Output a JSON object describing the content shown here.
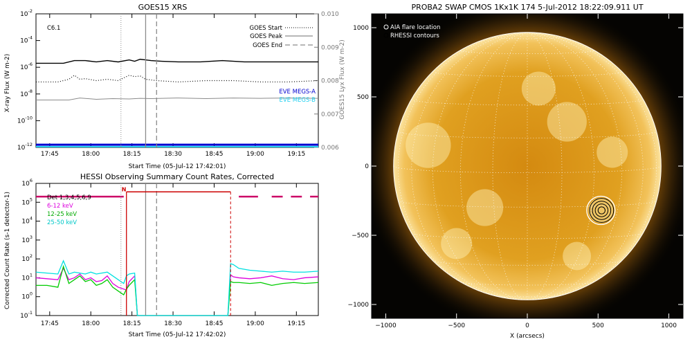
{
  "colors": {
    "xray_long": "#000000",
    "xray_short": "#000000",
    "lyx": "#8a8a8a",
    "megs_a": "#0000d0",
    "megs_b": "#20d0f0",
    "goes_start": "#8a8a8a",
    "goes_peak": "#8a8a8a",
    "goes_end": "#8a8a8a",
    "det": "#cc0066",
    "low": "#dd00dd",
    "mid": "#00cc00",
    "high": "#00e0e0",
    "flag": "#cc0000",
    "sun_bg": "#050402",
    "sun_disk": "#e6a21c",
    "sun_limb": "#f6c868"
  },
  "chart_data": [
    {
      "type": "line",
      "title": "GOES15 XRS",
      "xlabel": "Start Time (05-Jul-12 17:42:01)",
      "ylabel": "X-ray Flux (W m-2)",
      "y2label": "GOES15 Lyx Flux (W m-2)",
      "flare_class": "C6.1",
      "xlim": [
        -2,
        101
      ],
      "ylim_log": [
        -12,
        -2
      ],
      "y2lim": [
        0.006,
        0.01
      ],
      "x_ticks": [
        {
          "v": 3,
          "label": "17:45"
        },
        {
          "v": 18,
          "label": "18:00"
        },
        {
          "v": 33,
          "label": "18:15"
        },
        {
          "v": 48,
          "label": "18:30"
        },
        {
          "v": 63,
          "label": "18:45"
        },
        {
          "v": 78,
          "label": "19:00"
        },
        {
          "v": 93,
          "label": "19:15"
        }
      ],
      "y_ticks": [
        {
          "v": -2,
          "label": "10",
          "exp": "-2"
        },
        {
          "v": -4,
          "label": "10",
          "exp": "-4"
        },
        {
          "v": -6,
          "label": "10",
          "exp": "-6"
        },
        {
          "v": -8,
          "label": "10",
          "exp": "-8"
        },
        {
          "v": -10,
          "label": "10",
          "exp": "-10"
        },
        {
          "v": -12,
          "label": "10",
          "exp": "-12"
        }
      ],
      "y2_ticks": [
        "0.010",
        "0.009",
        "0.008",
        "0.007",
        "0.006"
      ],
      "legend": [
        "GOES Start",
        "GOES Peak",
        "GOES End"
      ],
      "legend2": [
        "EVE MEGS-A",
        "EVE MEGS-B"
      ],
      "events": {
        "start": 29,
        "peak": 38,
        "end": 42
      },
      "series": [
        {
          "name": "xray_long",
          "x": [
            -2,
            8,
            12,
            16,
            20,
            24,
            28,
            32,
            34,
            36,
            38,
            40,
            44,
            50,
            58,
            66,
            74,
            82,
            90,
            101
          ],
          "y": [
            -5.7,
            -5.7,
            -5.5,
            -5.5,
            -5.6,
            -5.5,
            -5.6,
            -5.45,
            -5.55,
            -5.4,
            -5.45,
            -5.5,
            -5.55,
            -5.6,
            -5.6,
            -5.5,
            -5.6,
            -5.6,
            -5.6,
            -5.6
          ]
        },
        {
          "name": "xray_short",
          "x": [
            -2,
            6,
            10,
            12,
            14,
            16,
            20,
            24,
            28,
            32,
            34,
            36,
            38,
            42,
            50,
            60,
            70,
            80,
            90,
            101
          ],
          "y": [
            -7.1,
            -7.1,
            -6.9,
            -6.6,
            -6.9,
            -6.85,
            -7.0,
            -6.9,
            -7.0,
            -6.6,
            -6.7,
            -6.65,
            -6.9,
            -7.0,
            -7.1,
            -7.0,
            -7.0,
            -7.1,
            -7.1,
            -7.0
          ]
        },
        {
          "name": "lyx",
          "x": [
            -2,
            10,
            14,
            20,
            26,
            32,
            36,
            40,
            50,
            60,
            70,
            80,
            90,
            101
          ],
          "y": [
            0.00742,
            0.00742,
            0.00748,
            0.00744,
            0.00746,
            0.00745,
            0.00747,
            0.00746,
            0.00748,
            0.00746,
            0.00748,
            0.00747,
            0.00748,
            0.00747
          ]
        },
        {
          "name": "EVE MEGS-A",
          "x": [
            -2,
            101
          ],
          "y": [
            -11.8,
            -11.8
          ]
        },
        {
          "name": "EVE MEGS-B",
          "x": [
            -2,
            101
          ],
          "y": [
            -11.95,
            -11.95
          ]
        }
      ]
    },
    {
      "type": "line",
      "title": "HESSI Observing Summary Count Rates, Corrected",
      "xlabel": "Start Time (05-Jul-12 17:42:02)",
      "ylabel": "Corrected Count Rate (s-1 detector-1)",
      "xlim": [
        -2,
        101
      ],
      "ylim_log": [
        -1,
        6
      ],
      "x_ticks": [
        {
          "v": 3,
          "label": "17:45"
        },
        {
          "v": 18,
          "label": "18:00"
        },
        {
          "v": 33,
          "label": "18:15"
        },
        {
          "v": 48,
          "label": "18:30"
        },
        {
          "v": 63,
          "label": "18:45"
        },
        {
          "v": 78,
          "label": "19:00"
        },
        {
          "v": 93,
          "label": "19:15"
        }
      ],
      "y_ticks": [
        {
          "v": 6,
          "label": "10",
          "exp": "6"
        },
        {
          "v": 5,
          "label": "10",
          "exp": "5"
        },
        {
          "v": 4,
          "label": "10",
          "exp": "4"
        },
        {
          "v": 3,
          "label": "10",
          "exp": "3"
        },
        {
          "v": 2,
          "label": "10",
          "exp": "2"
        },
        {
          "v": 1,
          "label": "10",
          "exp": "1"
        },
        {
          "v": 0,
          "label": "10",
          "exp": "0"
        },
        {
          "v": -1,
          "label": "10",
          "exp": "-1"
        }
      ],
      "legend": [
        "Det 1,3,4,5,6,9",
        "6-12 keV",
        "12-25 keV",
        "25-50 keV"
      ],
      "flag_label": "N",
      "events": {
        "start": 29,
        "peak": 38,
        "end": 42
      },
      "flag_box": {
        "x1": 31,
        "x2": 69,
        "y": 5.55
      },
      "series": [
        {
          "name": "6-12 keV",
          "x": [
            -2,
            2,
            6,
            8,
            10,
            12,
            14,
            16,
            18,
            20,
            22,
            24,
            26,
            28,
            30,
            31,
            32,
            34,
            35,
            68,
            69,
            70,
            72,
            76,
            80,
            84,
            88,
            92,
            96,
            101
          ],
          "y": [
            1.0,
            0.95,
            0.9,
            1.5,
            0.9,
            1.0,
            1.2,
            0.9,
            1.0,
            0.8,
            0.85,
            1.1,
            0.7,
            0.5,
            0.4,
            0.35,
            0.8,
            1.1,
            -1.0,
            -1.0,
            1.15,
            1.05,
            1.0,
            0.95,
            1.0,
            1.1,
            0.95,
            0.9,
            1.0,
            1.05
          ]
        },
        {
          "name": "12-25 keV",
          "x": [
            -2,
            2,
            6,
            8,
            10,
            12,
            14,
            16,
            18,
            20,
            22,
            24,
            26,
            28,
            30,
            31,
            32,
            34,
            35,
            68,
            69,
            70,
            72,
            76,
            80,
            84,
            88,
            92,
            96,
            101
          ],
          "y": [
            0.6,
            0.6,
            0.5,
            1.6,
            0.7,
            0.9,
            1.1,
            0.8,
            0.9,
            0.6,
            0.7,
            0.9,
            0.5,
            0.3,
            0.1,
            0.4,
            0.6,
            0.9,
            -1.0,
            -1.0,
            0.8,
            0.75,
            0.75,
            0.7,
            0.75,
            0.6,
            0.7,
            0.75,
            0.7,
            0.75
          ]
        },
        {
          "name": "25-50 keV",
          "x": [
            -2,
            2,
            6,
            8,
            10,
            12,
            14,
            16,
            18,
            20,
            22,
            24,
            26,
            28,
            30,
            31,
            32,
            34,
            35,
            68,
            69,
            70,
            72,
            76,
            80,
            84,
            88,
            92,
            96,
            101
          ],
          "y": [
            1.3,
            1.25,
            1.2,
            1.9,
            1.2,
            1.3,
            1.25,
            1.2,
            1.3,
            1.2,
            1.25,
            1.3,
            1.1,
            0.9,
            0.7,
            1.1,
            1.2,
            1.25,
            -1.0,
            -1.0,
            1.75,
            1.7,
            1.5,
            1.4,
            1.35,
            1.3,
            1.35,
            1.3,
            1.3,
            1.35
          ]
        },
        {
          "name": "Det",
          "segments": [
            [
              -2,
              30
            ],
            [
              72,
              79
            ],
            [
              84,
              88
            ],
            [
              91,
              95
            ],
            [
              98,
              101
            ]
          ],
          "y": 5.3
        }
      ]
    },
    {
      "type": "scatter",
      "title": "PROBA2 SWAP CMOS 1Kx1K 174  5-Jul-2012 18:22:09.911 UT",
      "xlabel": "X (arcsecs)",
      "ylabel": "",
      "xlim": [
        -1100,
        1100
      ],
      "ylim": [
        -1100,
        1100
      ],
      "x_ticks": [
        -1000,
        -500,
        0,
        500,
        1000
      ],
      "y_ticks": [
        1000,
        500,
        0,
        -500,
        -1000
      ],
      "x_tick_labels": [
        "−1000",
        "−500",
        "0",
        "500",
        "1000"
      ],
      "y_tick_labels": [
        "1000",
        "500",
        "0",
        "−500",
        "−1000"
      ],
      "solar_radius": 945,
      "legend": [
        "AIA flare location",
        "RHESSI contours"
      ],
      "flare_location": {
        "x": 520,
        "y": -320
      },
      "rhessi_contour_radii": [
        25,
        45,
        65,
        85
      ]
    }
  ]
}
